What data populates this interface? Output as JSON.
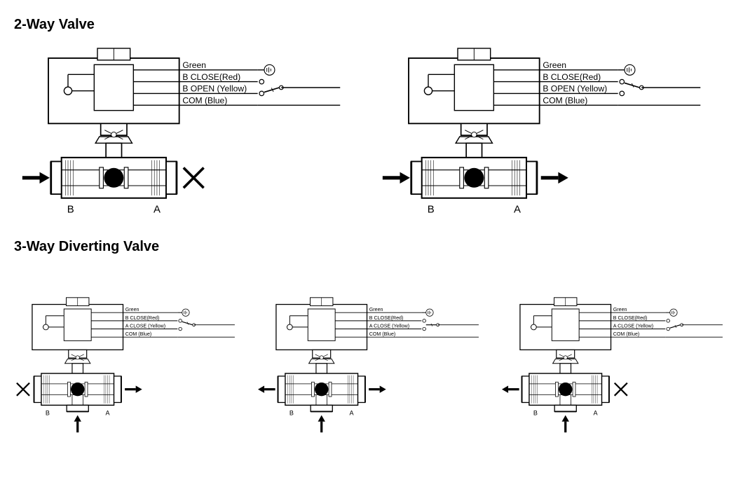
{
  "colors": {
    "stroke": "#000000",
    "fill_bg": "#ffffff",
    "fill_solid": "#000000"
  },
  "headings": {
    "two_way": "2-Way Valve",
    "three_way": "3-Way Diverting Valve"
  },
  "wires_2way": {
    "green": "Green",
    "close": "B CLOSE(Red)",
    "open": "B OPEN (Yellow)",
    "com": "COM (Blue)"
  },
  "wires_3way": {
    "green": "Green",
    "bclose": "B CLOSE(Red)",
    "aclose": "A CLOSE (Yellow)",
    "com": "COM (Blue)"
  },
  "ports": {
    "left": "B",
    "right": "A"
  },
  "two_way_states": [
    {
      "left": "arrow_right",
      "right": "cross",
      "switch_on": "open"
    },
    {
      "left": "arrow_right",
      "right": "arrow_right",
      "switch_on": "close"
    }
  ],
  "three_way_states": [
    {
      "left": "cross",
      "right": "arrow_right",
      "bottom": "arrow_up",
      "switch_on": "bclose"
    },
    {
      "left": "arrow_left",
      "right": "arrow_right",
      "bottom": "arrow_up",
      "switch_on": "mid"
    },
    {
      "left": "arrow_left",
      "right": "cross",
      "bottom": "arrow_up",
      "switch_on": "aclose"
    }
  ]
}
